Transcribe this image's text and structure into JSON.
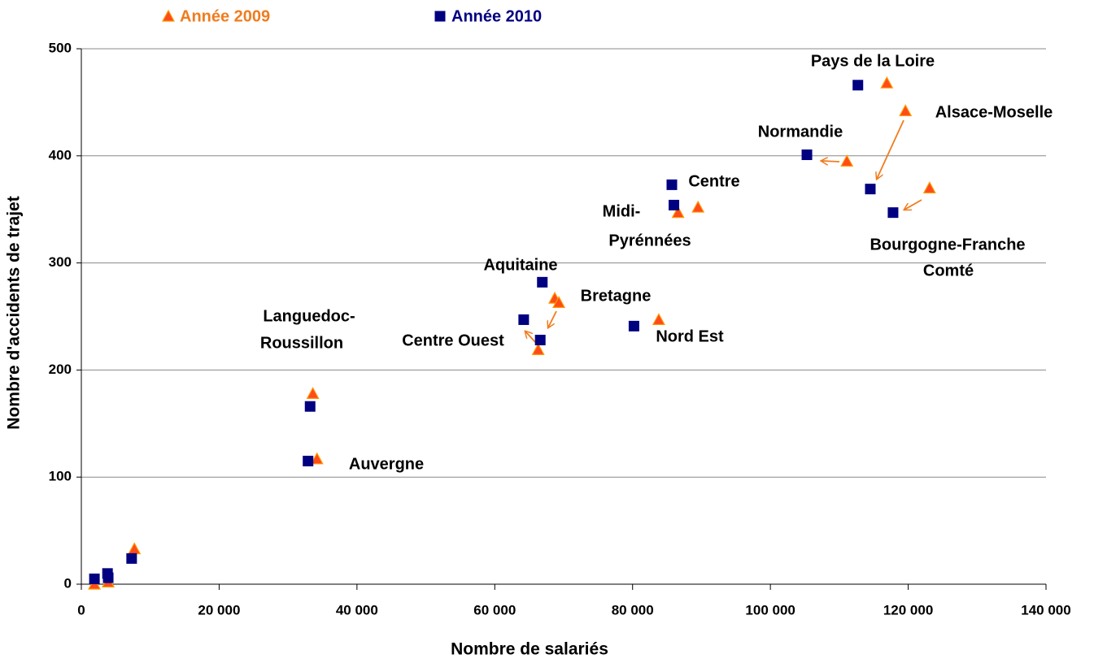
{
  "chart_data": {
    "type": "scatter",
    "xlabel": "Nombre de salariés",
    "ylabel": "Nombre d'accidents de trajet",
    "xlim": [
      0,
      140000
    ],
    "xticks": [
      0,
      {
        "value": 20000,
        "label": "20 000"
      },
      {
        "value": 40000,
        "label": "40 000"
      },
      {
        "value": 60000,
        "label": "60 000"
      },
      {
        "value": 80000,
        "label": "80 000"
      },
      {
        "value": 100000,
        "label": "100 000"
      },
      {
        "value": 120000,
        "label": "120 000"
      },
      {
        "value": 140000,
        "label": "140 000"
      }
    ],
    "ylim": [
      0,
      500
    ],
    "yticks": [
      0,
      100,
      200,
      300,
      400,
      500
    ],
    "grid": true,
    "legend": "top",
    "series": [
      {
        "name": "Année 2009",
        "color": "#ff4a1a",
        "marker": "triangle",
        "x": [
          1900,
          3900,
          7700,
          33600,
          34200,
          66300,
          68700,
          69300,
          83800,
          86600,
          89500,
          111100,
          116900,
          119600,
          123100
        ],
        "values": [
          0,
          2,
          33,
          178,
          117,
          219,
          267,
          263,
          247,
          347,
          352,
          395,
          468,
          442,
          370
        ]
      },
      {
        "name": "Année 2010",
        "color": "#000080",
        "marker": "square",
        "x": [
          1900,
          3800,
          3900,
          7300,
          33200,
          32900,
          64200,
          66600,
          66900,
          80200,
          85700,
          86000,
          105300,
          112700,
          114500,
          117800
        ],
        "values": [
          5,
          10,
          6,
          24,
          166,
          115,
          247,
          228,
          282,
          241,
          373,
          354,
          401,
          466,
          369,
          347
        ]
      }
    ],
    "annotations": [
      "Pays de la Loire",
      "Alsace-Moselle",
      "Normandie",
      "Centre",
      "Midi-",
      "Pyrénnées",
      "Bourgogne-Franche",
      "Comté",
      "Aquitaine",
      "Bretagne",
      "Languedoc-",
      "Roussillon",
      "Centre Ouest",
      "Nord Est",
      "Auvergne"
    ]
  }
}
